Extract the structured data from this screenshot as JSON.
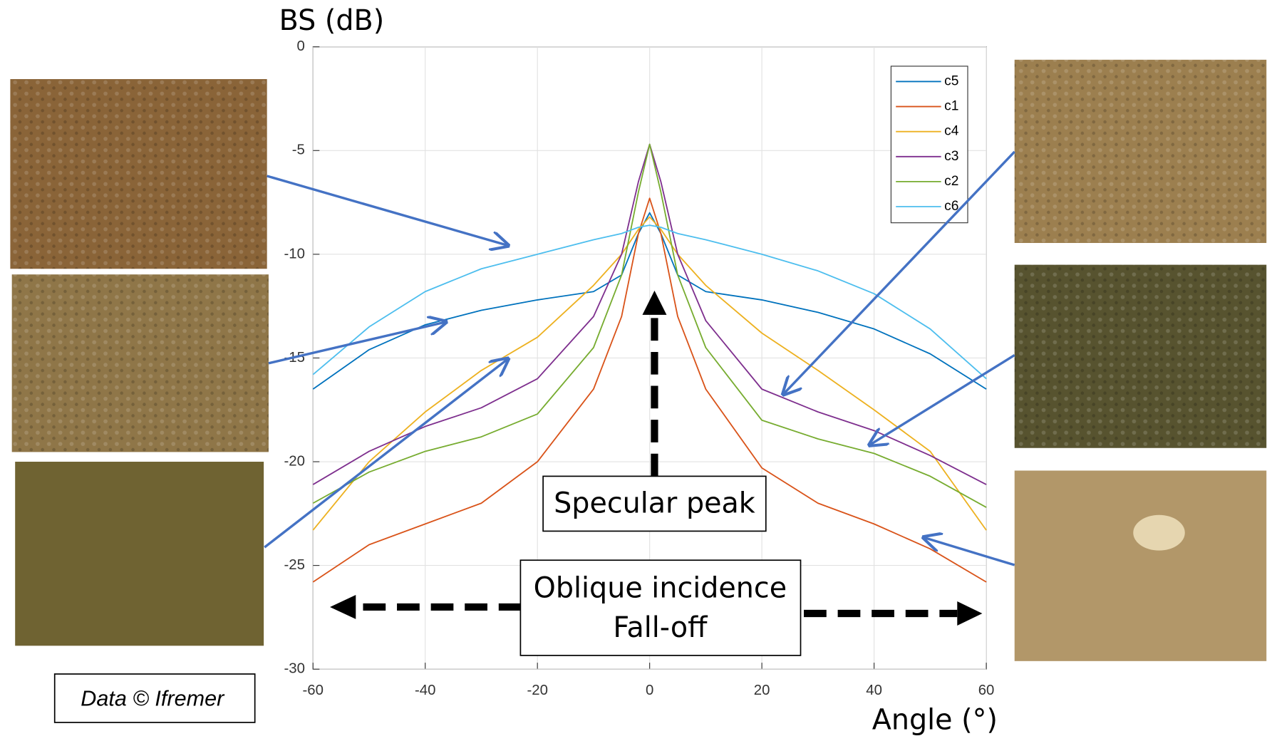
{
  "chart_data": {
    "type": "line",
    "y_label": "BS (dB)",
    "x_label": "Angle (°)",
    "x": [
      -60,
      -50,
      -40,
      -30,
      -20,
      -10,
      -5,
      -2,
      0,
      2,
      5,
      10,
      20,
      30,
      40,
      50,
      60
    ],
    "series": [
      {
        "name": "c5",
        "color": "#0072bd",
        "values": [
          -16.5,
          -14.6,
          -13.4,
          -12.7,
          -12.2,
          -11.8,
          -11.0,
          -9.0,
          -8.0,
          -9.0,
          -11.0,
          -11.8,
          -12.2,
          -12.8,
          -13.6,
          -14.8,
          -16.5
        ]
      },
      {
        "name": "c1",
        "color": "#d95319",
        "values": [
          -25.8,
          -24.0,
          -23.0,
          -22.0,
          -20.0,
          -16.5,
          -13.0,
          -9.0,
          -7.3,
          -9.0,
          -13.0,
          -16.5,
          -20.3,
          -22.0,
          -23.0,
          -24.2,
          -25.8
        ]
      },
      {
        "name": "c4",
        "color": "#edb120",
        "values": [
          -23.3,
          -20.0,
          -17.6,
          -15.6,
          -14.0,
          -11.5,
          -10.0,
          -8.8,
          -8.2,
          -8.8,
          -10.0,
          -11.5,
          -13.8,
          -15.6,
          -17.5,
          -19.5,
          -23.3
        ]
      },
      {
        "name": "c3",
        "color": "#7e2f8e",
        "values": [
          -21.1,
          -19.5,
          -18.3,
          -17.4,
          -16.0,
          -13.0,
          -10.0,
          -6.5,
          -4.7,
          -6.5,
          -10.0,
          -13.2,
          -16.5,
          -17.6,
          -18.5,
          -19.7,
          -21.1
        ]
      },
      {
        "name": "c2",
        "color": "#77ac30",
        "values": [
          -22.0,
          -20.5,
          -19.5,
          -18.8,
          -17.7,
          -14.5,
          -11.0,
          -7.0,
          -4.7,
          -7.0,
          -11.0,
          -14.5,
          -18.0,
          -18.9,
          -19.6,
          -20.7,
          -22.2
        ]
      },
      {
        "name": "c6",
        "color": "#4dbeee",
        "values": [
          -15.8,
          -13.5,
          -11.8,
          -10.7,
          -10.0,
          -9.3,
          -9.0,
          -8.7,
          -8.6,
          -8.7,
          -9.0,
          -9.3,
          -10.0,
          -10.8,
          -11.9,
          -13.6,
          -16.0
        ]
      }
    ],
    "xlim": [
      -60,
      60
    ],
    "ylim": [
      -30,
      0
    ],
    "xticks": [
      -60,
      -40,
      -20,
      0,
      20,
      40,
      60
    ],
    "yticks": [
      -30,
      -25,
      -20,
      -15,
      -10,
      -5,
      0
    ],
    "grid": true,
    "legend": "upper right",
    "annotations": [
      "Specular peak",
      "Oblique incidence",
      "Fall-off",
      "Data © Ifremer"
    ]
  }
}
